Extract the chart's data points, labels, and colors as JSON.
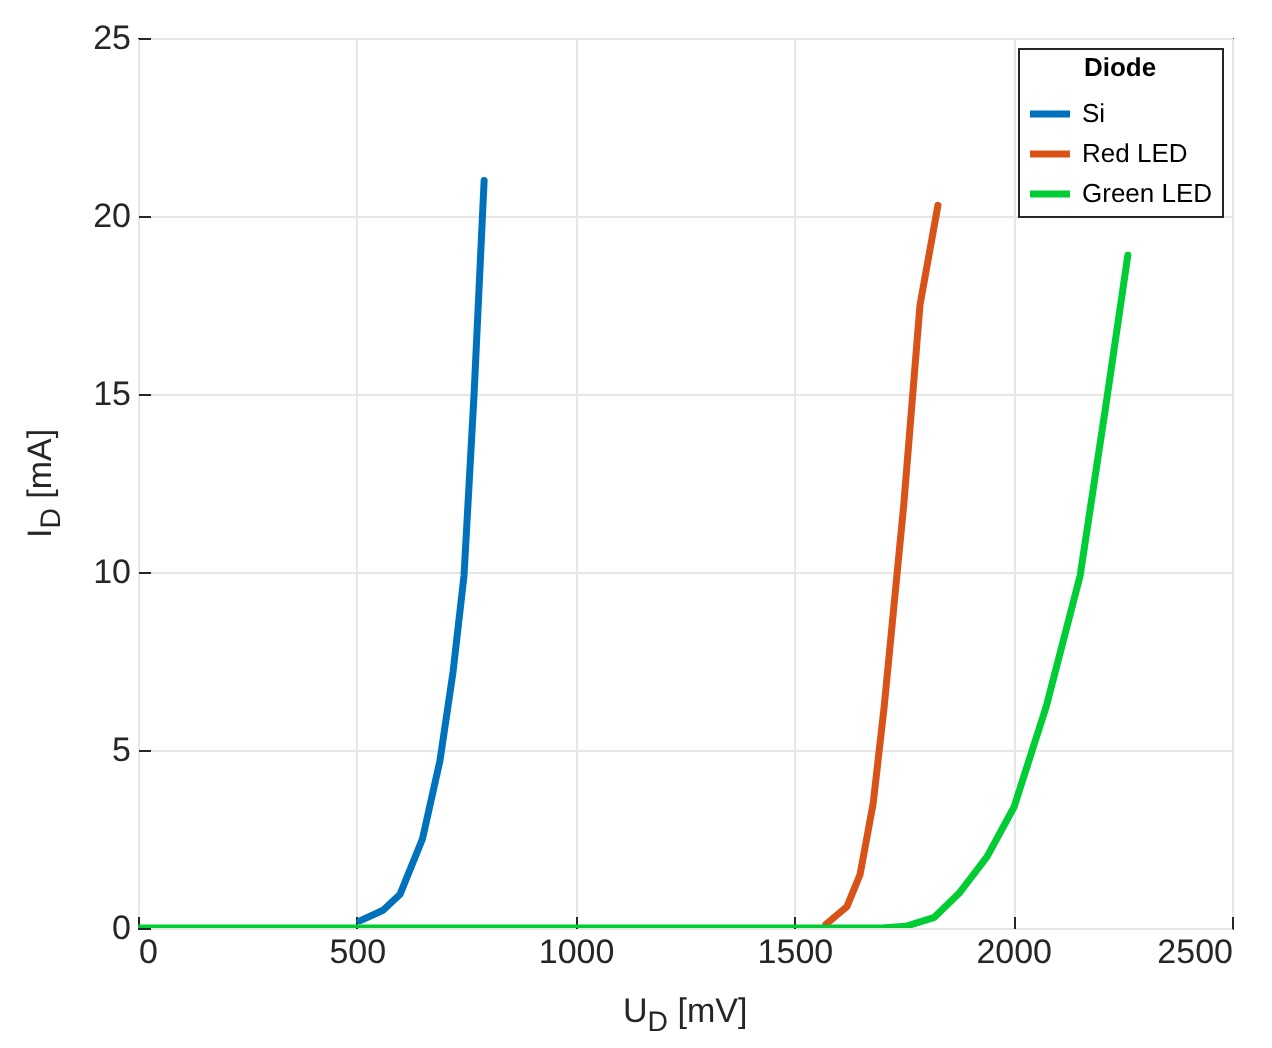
{
  "chart_data": {
    "type": "line",
    "xlabel": "U$_{D}$ [mV]",
    "ylabel": "I$_{D}$ [mA]",
    "legend_title": "Diode",
    "legend": "top right",
    "grid": true,
    "marker": "none",
    "line_style": "solid",
    "xlim": [
      0,
      2500
    ],
    "xticks": [
      0,
      500,
      1000,
      1500,
      2000,
      2500
    ],
    "ylim": [
      0,
      25
    ],
    "yticks": [
      0,
      5,
      10,
      15,
      20,
      25
    ],
    "series": [
      {
        "name": "Si",
        "color": "#0072bd",
        "x": [
          507,
          560,
          599,
          650,
          690,
          720,
          745,
          768,
          791
        ],
        "values": [
          0.2,
          0.5,
          0.95,
          2.5,
          4.7,
          7.2,
          9.9,
          15,
          21
        ]
      },
      {
        "name": "Red LED",
        "color": "#d95319",
        "x": [
          1572,
          1620,
          1650,
          1680,
          1705,
          1750,
          1787,
          1828
        ],
        "values": [
          0.1,
          0.6,
          1.5,
          3.5,
          6.2,
          11.9,
          17.5,
          20.3
        ]
      },
      {
        "name": "Green LED",
        "color": "#00cc33",
        "x": [
          0,
          500,
          1000,
          1500,
          1700,
          1755,
          1820,
          1878,
          1940,
          2002,
          2075,
          2153,
          2212,
          2262
        ],
        "values": [
          0,
          0,
          0,
          0,
          0,
          0.05,
          0.3,
          1.0,
          2.0,
          3.4,
          6.2,
          9.9,
          14.7,
          18.9
        ]
      }
    ]
  }
}
